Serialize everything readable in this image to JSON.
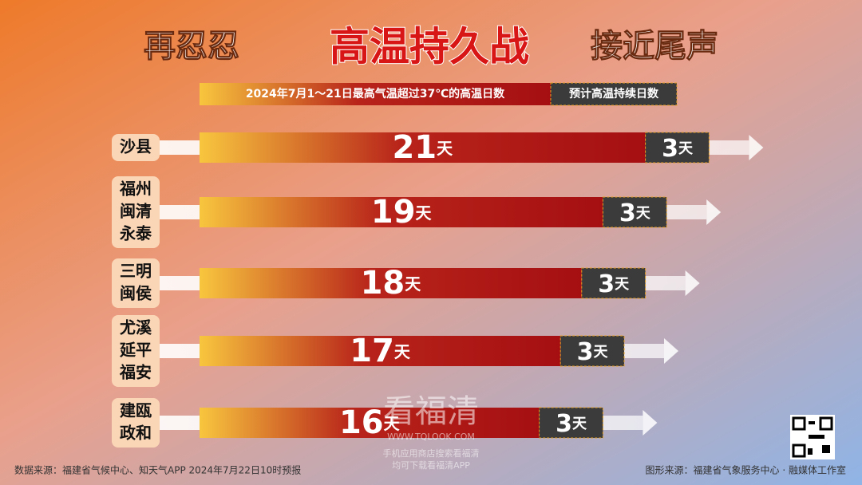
{
  "chart_data": {
    "type": "bar",
    "orientation": "horizontal",
    "stacked": true,
    "title": [
      "再忍忍",
      "高温持久战",
      "接近尾声"
    ],
    "categories": [
      [
        "沙县"
      ],
      [
        "福州",
        "闽清",
        "永泰"
      ],
      [
        "三明",
        "闽侯"
      ],
      [
        "尤溪",
        "延平",
        "福安"
      ],
      [
        "建瓯",
        "政和"
      ]
    ],
    "series": [
      {
        "name": "2024年7月1～21日最高气温超过37℃的高温日数",
        "color": "#a50f12",
        "values": [
          21,
          19,
          18,
          17,
          16
        ],
        "value_labels": [
          "21天",
          "19天",
          "18天",
          "17天",
          "16天"
        ]
      },
      {
        "name": "预计高温持续日数",
        "color": "#3b3b3b",
        "values": [
          3,
          3,
          3,
          3,
          3
        ],
        "value_labels": [
          "3天",
          "3天",
          "3天",
          "3天",
          "3天"
        ]
      }
    ],
    "source_left": "数据来源：福建省气候中心、知天气APP  2024年7月22日10时预报",
    "source_right": "图形来源：福建省气象服务中心 · 融媒体工作室",
    "watermark": [
      "看福清",
      "WWW.TQLOOK.COM",
      "手机应用商店搜索看福清",
      "均可下载看福清APP"
    ]
  }
}
